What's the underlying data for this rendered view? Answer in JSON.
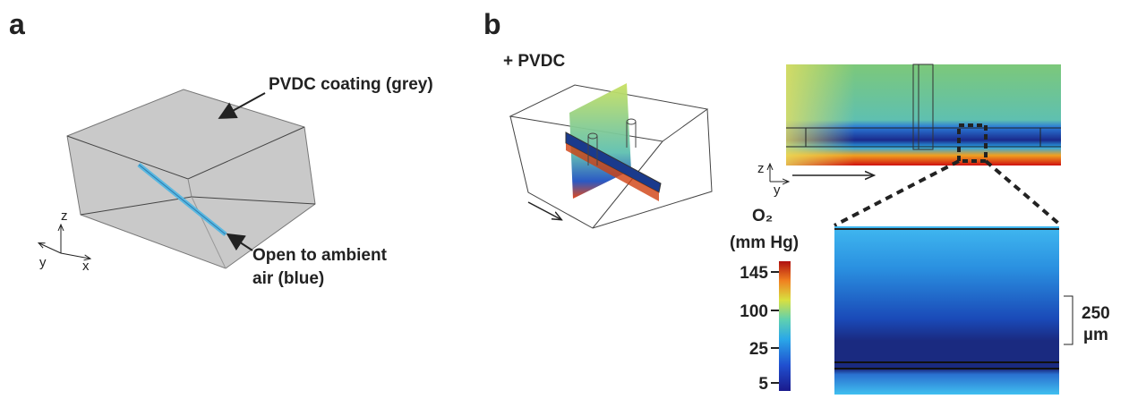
{
  "panel_a": {
    "label": "a",
    "coating_label": "PVDC coating (grey)",
    "open_label": [
      "Open to ambient",
      "air (blue)"
    ],
    "axes": {
      "z": "z",
      "y": "y",
      "x": "x"
    }
  },
  "panel_b": {
    "label": "b",
    "condition": "+ PVDC",
    "axes": {
      "z": "z",
      "y": "y"
    },
    "colorbar": {
      "title": [
        "O₂",
        "(mm Hg)"
      ],
      "ticks": [
        145,
        100,
        25,
        5
      ]
    },
    "scale_bar": [
      "250",
      "µm"
    ]
  }
}
